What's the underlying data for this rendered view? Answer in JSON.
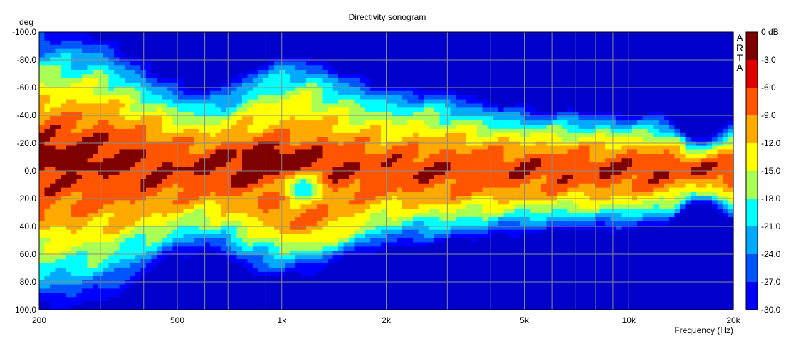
{
  "chart_data": {
    "type": "heatmap",
    "title": "Directivity sonogram",
    "xlabel": "Frequency (Hz)",
    "ylabel": "deg",
    "x_scale": "log",
    "xlim": [
      200,
      20000
    ],
    "ylim": [
      -100,
      100
    ],
    "x_tick_labels": [
      {
        "value": 200,
        "label": "200"
      },
      {
        "value": 500,
        "label": "500"
      },
      {
        "value": 1000,
        "label": "1k"
      },
      {
        "value": 2000,
        "label": "2k"
      },
      {
        "value": 5000,
        "label": "5k"
      },
      {
        "value": 10000,
        "label": "10k"
      },
      {
        "value": 20000,
        "label": "20k"
      }
    ],
    "y_tick_labels": [
      {
        "value": -100,
        "label": "-100.0"
      },
      {
        "value": -80,
        "label": "-80.0"
      },
      {
        "value": -60,
        "label": "-60.0"
      },
      {
        "value": -40,
        "label": "-40.0"
      },
      {
        "value": -20,
        "label": "-20.0"
      },
      {
        "value": 0,
        "label": "0.0"
      },
      {
        "value": 20,
        "label": "20.0"
      },
      {
        "value": 40,
        "label": "40.0"
      },
      {
        "value": 60,
        "label": "60.0"
      },
      {
        "value": 80,
        "label": "80.0"
      },
      {
        "value": 100,
        "label": "100.0"
      }
    ],
    "grid": true,
    "watermark": "ARTA",
    "colorbar": {
      "unit": "dB",
      "levels": [
        {
          "label": "0 dB",
          "value": 0,
          "color": "#7f0000"
        },
        {
          "label": "-3.0",
          "value": -3,
          "color": "#e00000"
        },
        {
          "label": "-6.0",
          "value": -6,
          "color": "#ff5500"
        },
        {
          "label": "-9.0",
          "value": -9,
          "color": "#ffaa00"
        },
        {
          "label": "-12.0",
          "value": -12,
          "color": "#ffff00"
        },
        {
          "label": "-15.0",
          "value": -15,
          "color": "#aaff55"
        },
        {
          "label": "-18.0",
          "value": -18,
          "color": "#00ffff"
        },
        {
          "label": "-21.0",
          "value": -21,
          "color": "#00aaff"
        },
        {
          "label": "-24.0",
          "value": -24,
          "color": "#0055ff"
        },
        {
          "label": "-27.0",
          "value": -27,
          "color": "#0000ff"
        },
        {
          "label": "-30.0",
          "value": -30,
          "color": "#0000cc"
        }
      ]
    },
    "main_lobe_width_deg": {
      "freq": [
        200,
        300,
        400,
        500,
        600,
        700,
        800,
        1000,
        1200,
        1500,
        2000,
        3000,
        4000,
        5000,
        7000,
        10000,
        13000,
        15000,
        17000,
        20000
      ],
      "half_width": [
        95,
        90,
        72,
        60,
        55,
        60,
        70,
        75,
        70,
        60,
        52,
        50,
        46,
        43,
        42,
        40,
        38,
        22,
        24,
        34
      ]
    }
  }
}
